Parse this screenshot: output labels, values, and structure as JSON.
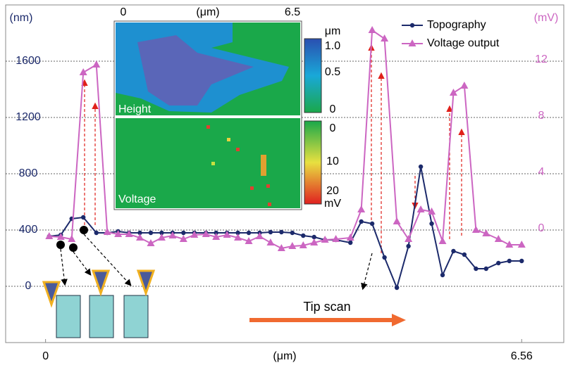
{
  "chart_data": {
    "type": "line",
    "x_label": "(μm)",
    "y_label": "(nm)",
    "y2_label": "(mV)",
    "xlim": [
      -0.55,
      7.14
    ],
    "xticks": [
      0,
      6.56
    ],
    "ylim": [
      -400,
      2000
    ],
    "yticks": [
      0,
      400,
      800,
      1200,
      1600
    ],
    "y2lim": [
      -8.1,
      15.9
    ],
    "y2ticks": [
      0,
      4,
      8,
      12
    ],
    "grid": true,
    "legend": "top-right",
    "annotation": "Tip scan",
    "x": [
      0.05,
      0.21,
      0.36,
      0.52,
      0.7,
      0.85,
      1.0,
      1.15,
      1.3,
      1.45,
      1.6,
      1.75,
      1.9,
      2.05,
      2.21,
      2.35,
      2.5,
      2.65,
      2.8,
      2.95,
      3.1,
      3.25,
      3.4,
      3.55,
      3.7,
      3.85,
      4.0,
      4.2,
      4.35,
      4.5,
      4.67,
      4.84,
      5.0,
      5.17,
      5.32,
      5.47,
      5.62,
      5.77,
      5.93,
      6.07,
      6.24,
      6.39,
      6.56
    ],
    "series": [
      {
        "name": "Topography",
        "color": "#1c2a6b",
        "marker": "circle",
        "values": [
          355,
          365,
          480,
          490,
          380,
          380,
          390,
          380,
          380,
          380,
          380,
          380,
          380,
          380,
          380,
          380,
          380,
          380,
          380,
          380,
          385,
          385,
          380,
          360,
          350,
          330,
          330,
          310,
          460,
          445,
          205,
          -10,
          285,
          850,
          445,
          80,
          250,
          225,
          125,
          125,
          165,
          180,
          180
        ]
      },
      {
        "name": "Voltage output",
        "color": "#cc66c2",
        "marker": "triangle",
        "axis": "y2",
        "values": [
          -0.55,
          -0.6,
          -0.75,
          11.1,
          11.65,
          -0.25,
          -0.4,
          -0.4,
          -0.65,
          -1.05,
          -0.65,
          -0.5,
          -0.75,
          -0.45,
          -0.4,
          -0.6,
          -0.45,
          -0.65,
          -0.9,
          -0.55,
          -1.0,
          -1.4,
          -1.25,
          -1.2,
          -1.0,
          -0.8,
          -0.75,
          -0.65,
          1.35,
          14.1,
          13.5,
          0.5,
          -0.75,
          1.35,
          1.2,
          -0.9,
          9.65,
          10.15,
          -0.1,
          -0.35,
          -0.75,
          -1.15,
          -1.15
        ]
      }
    ],
    "inset": {
      "x_labels": [
        "0",
        "(μm)",
        "6.5"
      ],
      "height_title": "Height",
      "height_scale": [
        "μm",
        "1.0",
        "0.5",
        "0"
      ],
      "voltage_title": "Voltage",
      "voltage_scale": [
        "0",
        "10",
        "20",
        "mV"
      ]
    }
  }
}
